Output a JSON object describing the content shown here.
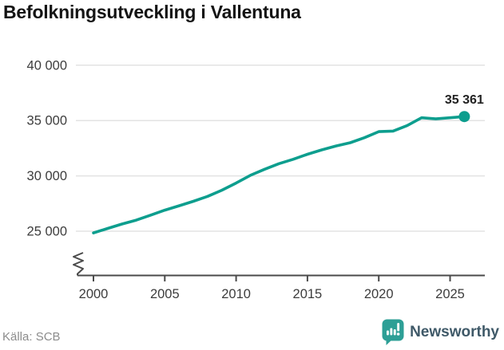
{
  "title": "Befolkningsutveckling i Vallentuna",
  "source": {
    "label": "Källa: SCB"
  },
  "brand": {
    "name": "Newsworthy",
    "icon": "newsworthy-bubble-chart-icon"
  },
  "colors": {
    "line": "#0d9e8e",
    "grid": "#e3e3e3",
    "axis": "#4a4a4a",
    "tick_label": "#3d3d3d",
    "title_text": "#141414",
    "source_text": "#8c8c8c",
    "brand_text": "#3f5968",
    "brand_icon": "#2d9f96",
    "end_label_text": "#222222"
  },
  "chart_data": {
    "type": "line",
    "title": "Befolkningsutveckling i Vallentuna",
    "x": [
      2000,
      2001,
      2002,
      2003,
      2004,
      2005,
      2006,
      2007,
      2008,
      2009,
      2010,
      2011,
      2012,
      2013,
      2014,
      2015,
      2016,
      2017,
      2018,
      2019,
      2020,
      2021,
      2022,
      2023,
      2024,
      2025,
      2026
    ],
    "values": [
      24850,
      25250,
      25650,
      26000,
      26450,
      26900,
      27300,
      27700,
      28150,
      28700,
      29350,
      30050,
      30600,
      31100,
      31500,
      31950,
      32350,
      32700,
      33000,
      33450,
      34000,
      34050,
      34550,
      35250,
      35150,
      35250,
      35361
    ],
    "end_label": "35 361",
    "end_value": 35361,
    "y_ticks": [
      {
        "value": 25000,
        "label": "25 000"
      },
      {
        "value": 30000,
        "label": "30 000"
      },
      {
        "value": 35000,
        "label": "35 000"
      },
      {
        "value": 40000,
        "label": "40 000"
      }
    ],
    "x_ticks": [
      2000,
      2005,
      2010,
      2015,
      2020,
      2025
    ],
    "xlim": [
      2000,
      2026
    ],
    "ylim": [
      24500,
      40000
    ],
    "axis_break": true,
    "grid": "horizontal-only",
    "legend": "none",
    "line_color": "#0d9e8e"
  }
}
